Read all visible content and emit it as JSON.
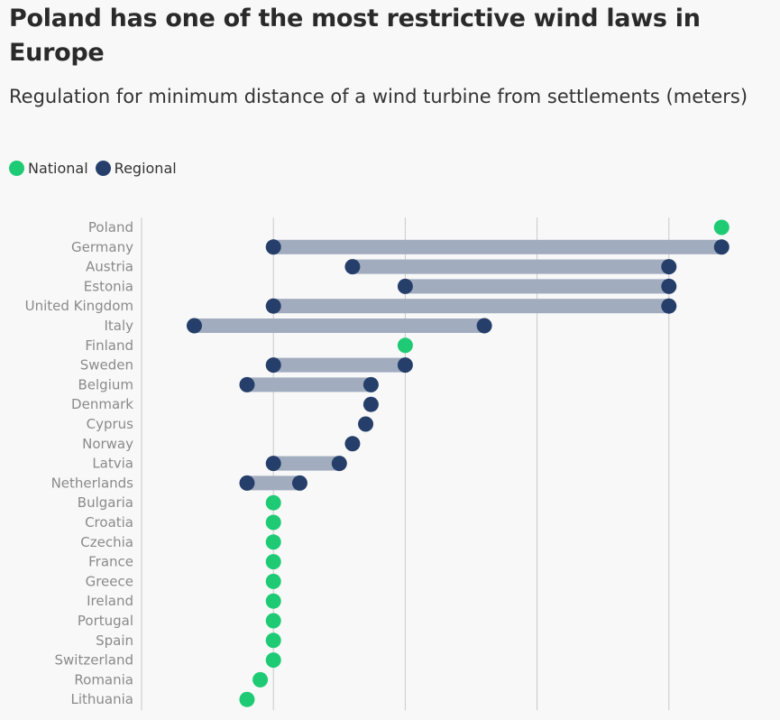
{
  "title": "Poland has one of the most restrictive wind laws in Europe",
  "subtitle": "Regulation for minimum distance of a wind turbine from settlements (meters)",
  "colors": {
    "national": "#1ecb74",
    "regional": "#263f6a",
    "range": "#a1acbf",
    "grid": "#c9c9c9"
  },
  "legend": [
    {
      "label": "National",
      "color": "#1ecb74"
    },
    {
      "label": "Regional",
      "color": "#263f6a"
    }
  ],
  "chart_data": {
    "type": "dumbbell",
    "xlim": [
      0,
      2500
    ],
    "gridlines": [
      0,
      500,
      1000,
      1500,
      2000
    ],
    "tick_labels_shown": false,
    "rows": [
      {
        "country": "Poland",
        "type": "national",
        "values": [
          2200
        ]
      },
      {
        "country": "Germany",
        "type": "regional",
        "values": [
          500,
          2200
        ]
      },
      {
        "country": "Austria",
        "type": "regional",
        "values": [
          800,
          2000
        ]
      },
      {
        "country": "Estonia",
        "type": "regional",
        "values": [
          1000,
          2000
        ]
      },
      {
        "country": "United Kingdom",
        "type": "regional",
        "values": [
          500,
          2000
        ]
      },
      {
        "country": "Italy",
        "type": "regional",
        "values": [
          200,
          1300
        ]
      },
      {
        "country": "Finland",
        "type": "national",
        "values": [
          1000
        ]
      },
      {
        "country": "Sweden",
        "type": "regional",
        "values": [
          500,
          1000
        ]
      },
      {
        "country": "Belgium",
        "type": "regional",
        "values": [
          400,
          870
        ]
      },
      {
        "country": "Denmark",
        "type": "regional",
        "values": [
          870
        ]
      },
      {
        "country": "Cyprus",
        "type": "regional",
        "values": [
          850
        ]
      },
      {
        "country": "Norway",
        "type": "regional",
        "values": [
          800
        ]
      },
      {
        "country": "Latvia",
        "type": "regional",
        "values": [
          500,
          750
        ]
      },
      {
        "country": "Netherlands",
        "type": "regional",
        "values": [
          400,
          600
        ]
      },
      {
        "country": "Bulgaria",
        "type": "national",
        "values": [
          500
        ]
      },
      {
        "country": "Croatia",
        "type": "national",
        "values": [
          500
        ]
      },
      {
        "country": "Czechia",
        "type": "national",
        "values": [
          500
        ]
      },
      {
        "country": "France",
        "type": "national",
        "values": [
          500
        ]
      },
      {
        "country": "Greece",
        "type": "national",
        "values": [
          500
        ]
      },
      {
        "country": "Ireland",
        "type": "national",
        "values": [
          500
        ]
      },
      {
        "country": "Portugal",
        "type": "national",
        "values": [
          500
        ]
      },
      {
        "country": "Spain",
        "type": "national",
        "values": [
          500
        ]
      },
      {
        "country": "Switzerland",
        "type": "national",
        "values": [
          500
        ]
      },
      {
        "country": "Romania",
        "type": "national",
        "values": [
          450
        ]
      },
      {
        "country": "Lithuania",
        "type": "national",
        "values": [
          400
        ]
      }
    ]
  }
}
